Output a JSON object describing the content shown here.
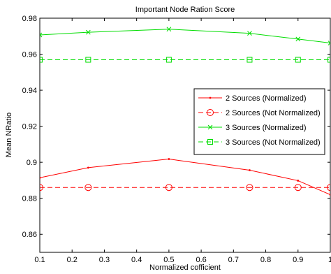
{
  "chart_data": {
    "type": "line",
    "title": "Important Node Ration Score",
    "xlabel": "Normalized cofficient",
    "ylabel": "Mean NRatio",
    "xlim": [
      0.1,
      1.0
    ],
    "ylim": [
      0.85,
      0.98
    ],
    "xticks": [
      0.1,
      0.2,
      0.3,
      0.4,
      0.5,
      0.6,
      0.7,
      0.8,
      0.9,
      1
    ],
    "xtick_labels": [
      "0.1",
      "0.2",
      "0.3",
      "0.4",
      "0.5",
      "0.6",
      "0.7",
      "0.8",
      "0.9",
      "1"
    ],
    "yticks": [
      0.86,
      0.88,
      0.9,
      0.92,
      0.94,
      0.96,
      0.98
    ],
    "ytick_labels": [
      "0.86",
      "0.88",
      "0.9",
      "0.92",
      "0.94",
      "0.96",
      "0.98"
    ],
    "grid": false,
    "legend_position": "center-right",
    "series": [
      {
        "name": "2 Sources (Normalized)",
        "color": "#ff0000",
        "line_style": "solid",
        "marker": "dot",
        "x": [
          0.1,
          0.25,
          0.5,
          0.75,
          0.9,
          1.0
        ],
        "y": [
          0.8914,
          0.897,
          0.9018,
          0.8956,
          0.8898,
          0.882
        ]
      },
      {
        "name": "2 Sources (Not Normalized)",
        "color": "#ff0000",
        "line_style": "dashed",
        "marker": "circle",
        "x": [
          0.1,
          0.25,
          0.5,
          0.75,
          0.9,
          1.0
        ],
        "y": [
          0.886,
          0.886,
          0.886,
          0.886,
          0.886,
          0.886
        ]
      },
      {
        "name": "3 Sources (Normalized)",
        "color": "#00dd00",
        "line_style": "solid",
        "marker": "x",
        "x": [
          0.1,
          0.25,
          0.5,
          0.75,
          0.9,
          1.0
        ],
        "y": [
          0.9707,
          0.9722,
          0.9739,
          0.9716,
          0.9684,
          0.9662
        ]
      },
      {
        "name": "3 Sources (Not Normalized)",
        "color": "#00dd00",
        "line_style": "dashed",
        "marker": "square",
        "x": [
          0.1,
          0.25,
          0.5,
          0.75,
          0.9,
          1.0
        ],
        "y": [
          0.9569,
          0.9569,
          0.9569,
          0.9569,
          0.9569,
          0.9569
        ]
      }
    ]
  }
}
